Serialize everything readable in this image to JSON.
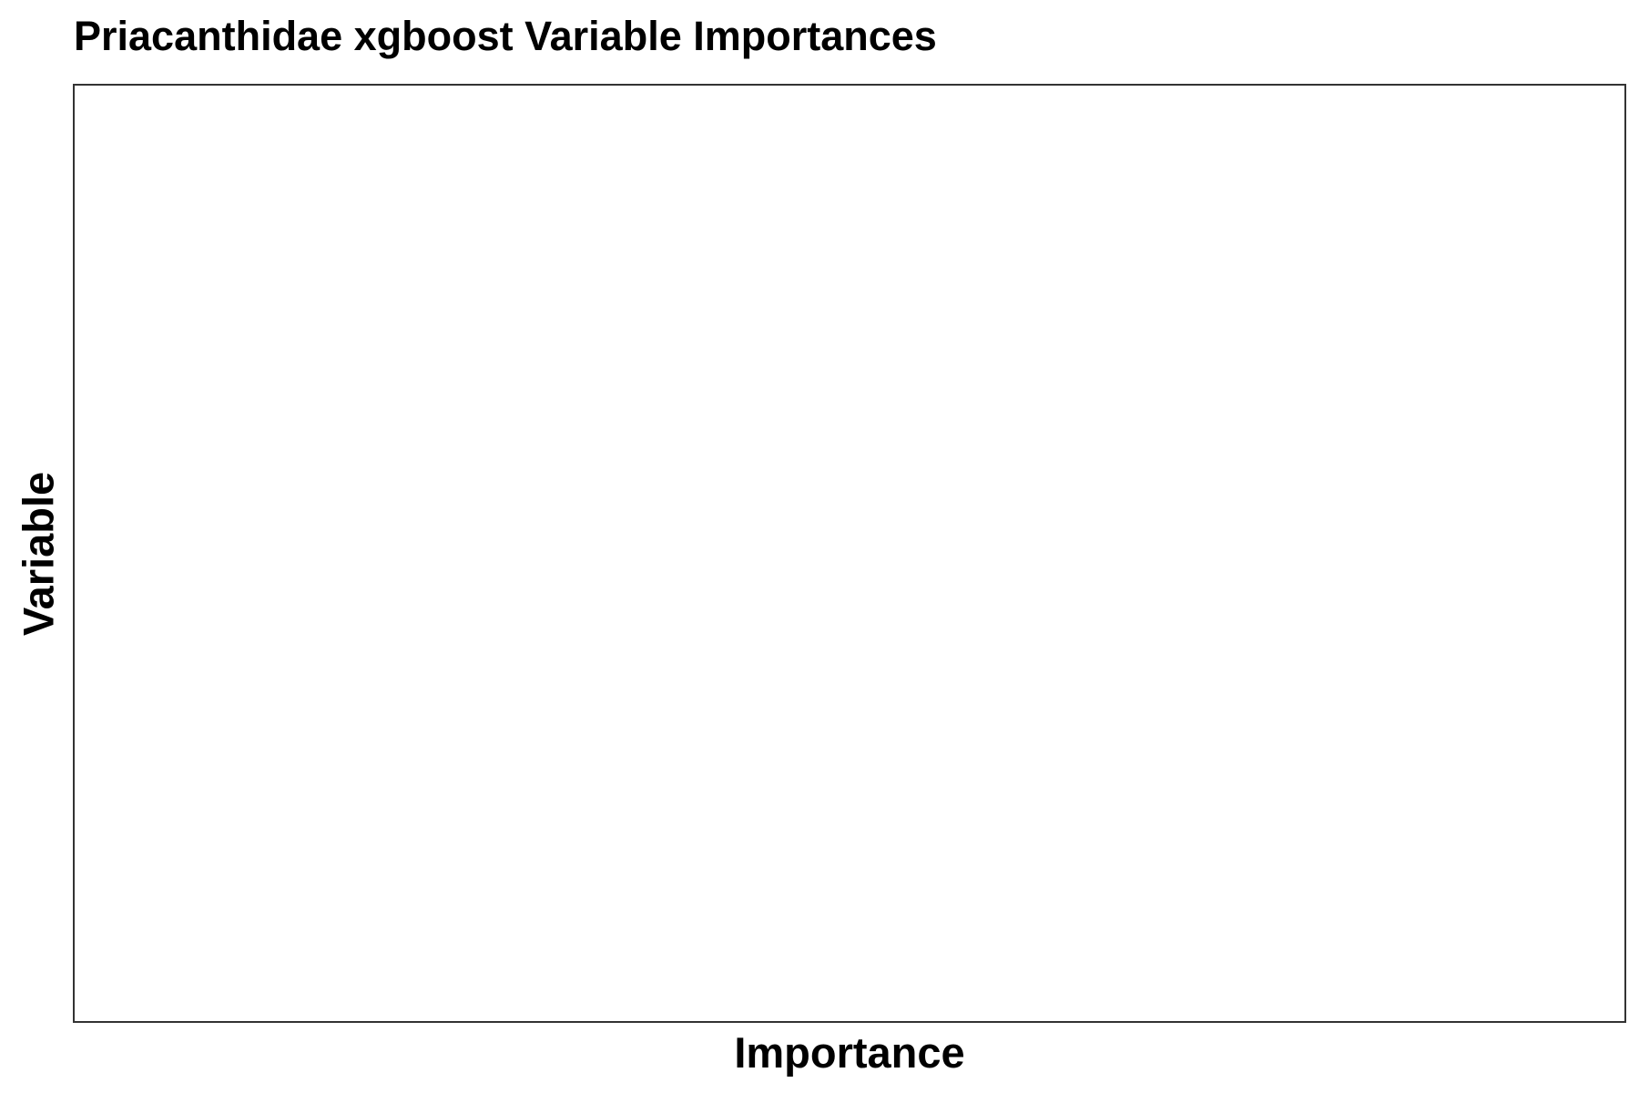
{
  "chart_data": {
    "type": "bar",
    "title": "Priacanthidae xgboost Variable Importances",
    "xlabel": "Importance",
    "ylabel": "Variable",
    "categories": [],
    "values": [],
    "grid": false,
    "legend": "none",
    "colors": {
      "panel_border": "#333333",
      "background": "#ffffff",
      "text": "#000000"
    }
  }
}
